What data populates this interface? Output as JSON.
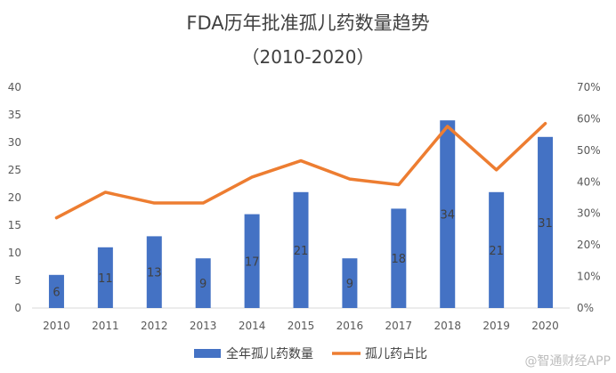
{
  "chart_data": {
    "type": "bar",
    "title": "FDA历年批准孤儿药数量趋势",
    "subtitle": "（2010-2020）",
    "categories": [
      "2010",
      "2011",
      "2012",
      "2013",
      "2014",
      "2015",
      "2016",
      "2017",
      "2018",
      "2019",
      "2020"
    ],
    "series": [
      {
        "name": "全年孤儿药数量",
        "type": "bar",
        "axis": "left",
        "color": "#4472C4",
        "values": [
          6,
          11,
          13,
          9,
          17,
          21,
          9,
          18,
          34,
          21,
          31
        ],
        "labels": [
          "6",
          "11",
          "13",
          "9",
          "17",
          "21",
          "9",
          "18",
          "34",
          "21",
          "31"
        ]
      },
      {
        "name": "孤儿药占比",
        "type": "line",
        "axis": "right",
        "color": "#ED7D31",
        "values": [
          0.286,
          0.367,
          0.333,
          0.333,
          0.415,
          0.467,
          0.409,
          0.391,
          0.576,
          0.438,
          0.585
        ]
      }
    ],
    "ylim_left": [
      0,
      40
    ],
    "yticks_left": [
      "0",
      "5",
      "10",
      "15",
      "20",
      "25",
      "30",
      "35",
      "40"
    ],
    "ylim_right": [
      0,
      0.7
    ],
    "yticks_right": [
      "0%",
      "10%",
      "20%",
      "30%",
      "40%",
      "50%",
      "60%",
      "70%"
    ],
    "grid": false,
    "legend_position": "bottom"
  },
  "watermark": "@智通财经APP"
}
